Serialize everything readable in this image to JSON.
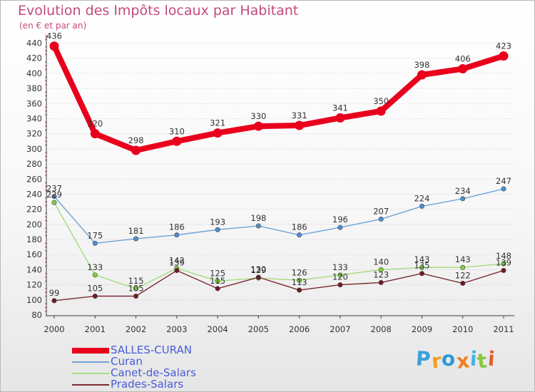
{
  "header": {
    "title": "Evolution des Impôts locaux par Habitant",
    "subtitle": "(en € et par an)"
  },
  "logo": {
    "text": "Proxiti",
    "letter_colors": [
      "#3aa0d8",
      "#f0a020",
      "#2e9ad4",
      "#f08020",
      "#46b4e0",
      "#8cc63e",
      "#e85d2a"
    ]
  },
  "chart_data": {
    "type": "line",
    "title": "Evolution des Impôts locaux par Habitant",
    "subtitle": "(en € et par an)",
    "xlabel": "",
    "ylabel": "",
    "ylim": [
      80,
      450
    ],
    "yticks": [
      80,
      100,
      120,
      140,
      160,
      180,
      200,
      220,
      240,
      260,
      280,
      300,
      320,
      340,
      360,
      380,
      400,
      420,
      440
    ],
    "x": [
      "2000",
      "2001",
      "2002",
      "2003",
      "2004",
      "2005",
      "2006",
      "2007",
      "2008",
      "2009",
      "2010",
      "2011"
    ],
    "legend_position": "bottom-left",
    "series": [
      {
        "name": "SALLES-CURAN",
        "color": "#e8001c",
        "line_color": "#e8001c",
        "emphasis": true,
        "values": [
          436,
          320,
          298,
          310,
          321,
          330,
          331,
          341,
          350,
          398,
          406,
          423
        ]
      },
      {
        "name": "Curan",
        "color": "#4f8fcc",
        "line_color": "#6fa3d6",
        "emphasis": false,
        "values": [
          237,
          175,
          181,
          186,
          193,
          198,
          186,
          196,
          207,
          224,
          234,
          247
        ]
      },
      {
        "name": "Canet-de-Salars",
        "color": "#7fd13b",
        "line_color": "#a6dc7e",
        "emphasis": false,
        "values": [
          229,
          133,
          115,
          142,
          125,
          129,
          126,
          133,
          140,
          143,
          143,
          148
        ]
      },
      {
        "name": "Prades-Salars",
        "color": "#6e1a24",
        "line_color": "#7a2a33",
        "emphasis": false,
        "values": [
          99,
          105,
          105,
          139,
          115,
          130,
          113,
          120,
          123,
          135,
          122,
          139
        ]
      }
    ]
  }
}
